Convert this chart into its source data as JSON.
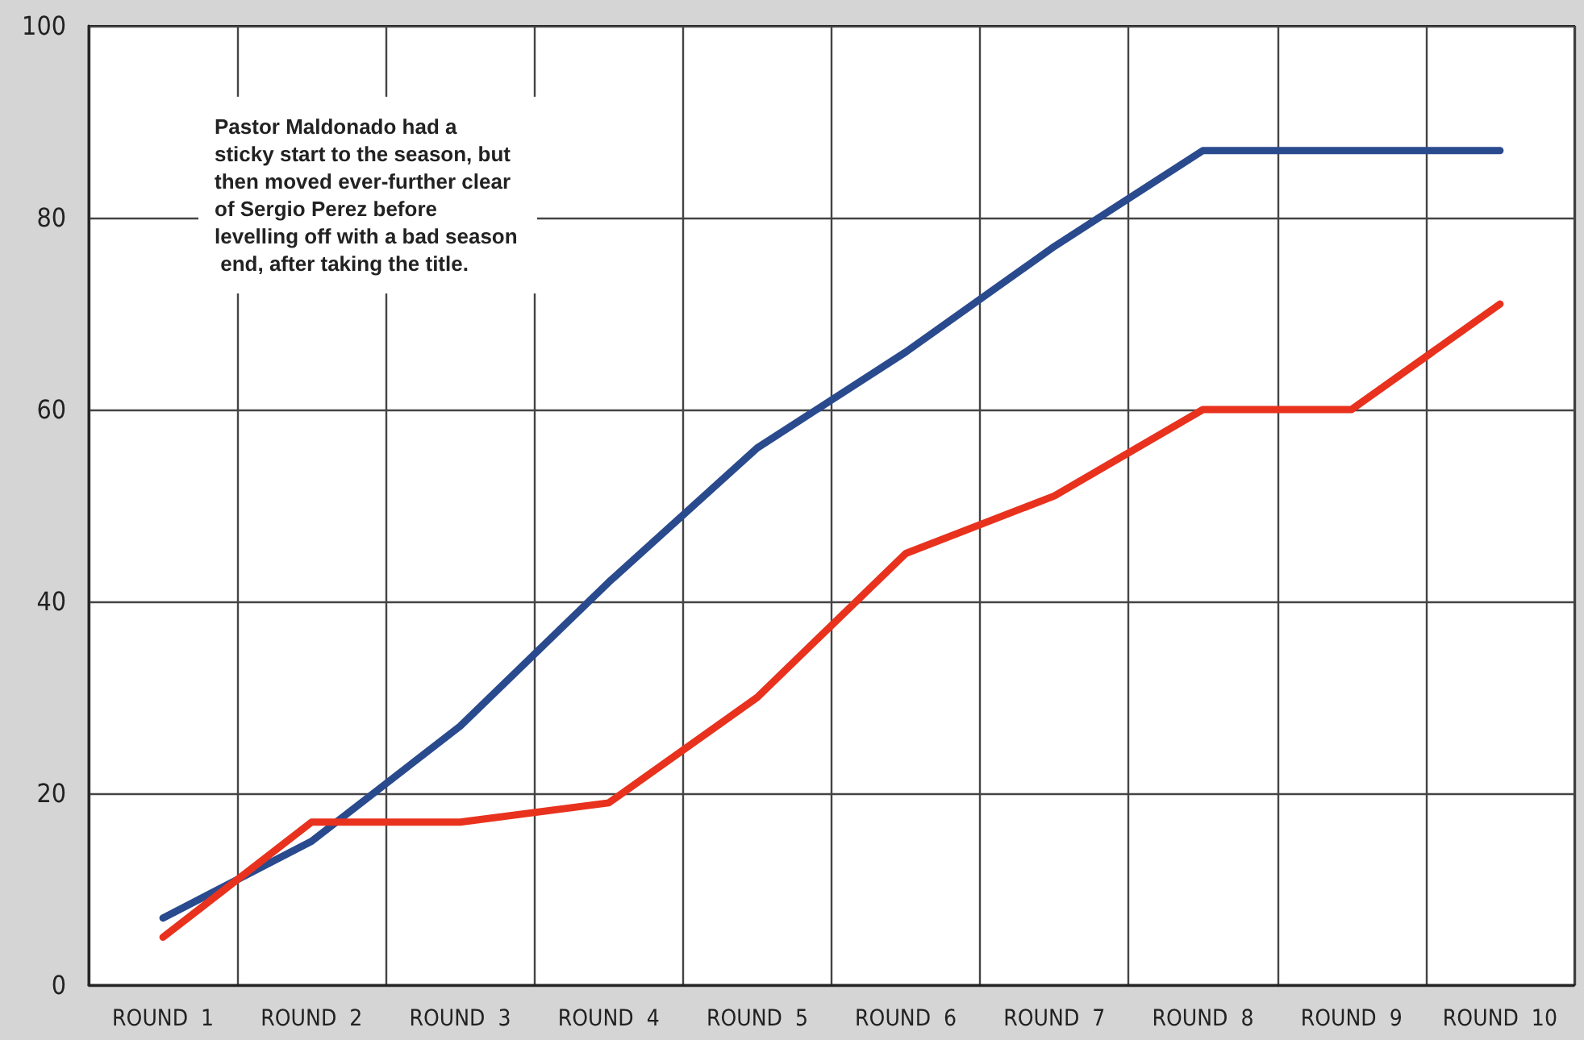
{
  "chart_data": {
    "type": "line",
    "categories": [
      "ROUND  1",
      "ROUND  2",
      "ROUND  3",
      "ROUND  4",
      "ROUND  5",
      "ROUND  6",
      "ROUND  7",
      "ROUND  8",
      "ROUND  9",
      "ROUND  10"
    ],
    "series": [
      {
        "color": "#2a4a8e",
        "values": [
          7,
          15,
          27,
          42,
          56,
          66,
          77,
          87,
          87,
          87
        ]
      },
      {
        "color": "#e8321e",
        "values": [
          5,
          17,
          17,
          19,
          30,
          45,
          51,
          60,
          60,
          71
        ]
      }
    ],
    "ylim": [
      0,
      100
    ],
    "yticks": [
      0,
      20,
      40,
      60,
      80,
      100
    ],
    "grid": true,
    "marker": "none",
    "line_style": "solid",
    "annotations": [
      "Pastor Maldonado had a sticky start to the season, but then moved ever-further clear of Sergio Perez before levelling off with a bad season end, after taking the title."
    ]
  }
}
